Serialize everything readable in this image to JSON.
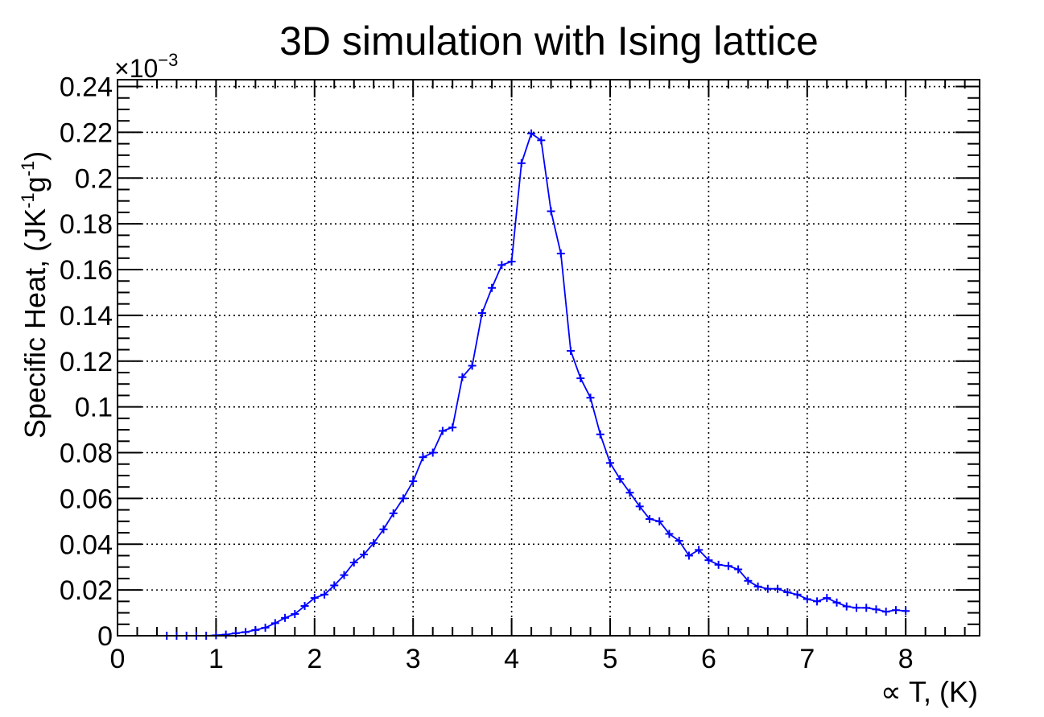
{
  "chart_data": {
    "type": "line",
    "title": "3D simulation with Ising lattice",
    "xlabel": "∝ T, (K)",
    "ylabel": "Specific Heat, (JK-1g-1)",
    "ylabel_parts": {
      "main": "Specific Heat, (JK",
      "sup1": "-1",
      "mid": "g",
      "sup2": "-1",
      "end": ")"
    },
    "y_multiplier": {
      "base": "×10",
      "exponent": "−3"
    },
    "xlim": [
      0,
      8.75
    ],
    "ylim": [
      0,
      0.243
    ],
    "x_ticks": [
      "0",
      "1",
      "2",
      "3",
      "4",
      "5",
      "6",
      "7",
      "8"
    ],
    "y_ticks": [
      "0",
      "0.02",
      "0.04",
      "0.06",
      "0.08",
      "0.1",
      "0.12",
      "0.14",
      "0.16",
      "0.18",
      "0.2",
      "0.22",
      "0.24"
    ],
    "grid": true,
    "color": "#0000ff",
    "series": [
      {
        "x": [
          0.5,
          0.6,
          0.7,
          0.8,
          0.9,
          1.0,
          1.1,
          1.2,
          1.3,
          1.4,
          1.5,
          1.6,
          1.7,
          1.8,
          1.9,
          2.0,
          2.1,
          2.2,
          2.3,
          2.4,
          2.5,
          2.6,
          2.7,
          2.8,
          2.9,
          3.0,
          3.1,
          3.2,
          3.3,
          3.4,
          3.5,
          3.6,
          3.7,
          3.8,
          3.9,
          4.0,
          4.1,
          4.2,
          4.3,
          4.4,
          4.5,
          4.6,
          4.7,
          4.8,
          4.9,
          5.0,
          5.1,
          5.2,
          5.3,
          5.4,
          5.5,
          5.6,
          5.7,
          5.8,
          5.9,
          6.0,
          6.1,
          6.2,
          6.3,
          6.4,
          6.5,
          6.6,
          6.7,
          6.8,
          6.9,
          7.0,
          7.1,
          7.2,
          7.3,
          7.4,
          7.5,
          7.6,
          7.7,
          7.8,
          7.9,
          8.0
        ],
        "y": [
          0.0,
          0.0,
          0.0,
          0.0,
          0.0,
          0.0002,
          0.0005,
          0.0011,
          0.0016,
          0.0025,
          0.0035,
          0.0055,
          0.0078,
          0.0095,
          0.013,
          0.0165,
          0.018,
          0.022,
          0.0265,
          0.032,
          0.0355,
          0.0405,
          0.0465,
          0.0535,
          0.06,
          0.0675,
          0.078,
          0.08,
          0.0895,
          0.091,
          0.113,
          0.118,
          0.141,
          0.152,
          0.162,
          0.1635,
          0.2065,
          0.2195,
          0.2165,
          0.1855,
          0.167,
          0.1245,
          0.1125,
          0.104,
          0.088,
          0.0755,
          0.0685,
          0.0625,
          0.0565,
          0.051,
          0.05,
          0.0445,
          0.0415,
          0.035,
          0.0375,
          0.033,
          0.031,
          0.0305,
          0.029,
          0.024,
          0.0215,
          0.0205,
          0.0205,
          0.019,
          0.018,
          0.016,
          0.015,
          0.0165,
          0.0145,
          0.0128,
          0.0122,
          0.0122,
          0.0115,
          0.0105,
          0.0112,
          0.0108
        ]
      }
    ]
  }
}
